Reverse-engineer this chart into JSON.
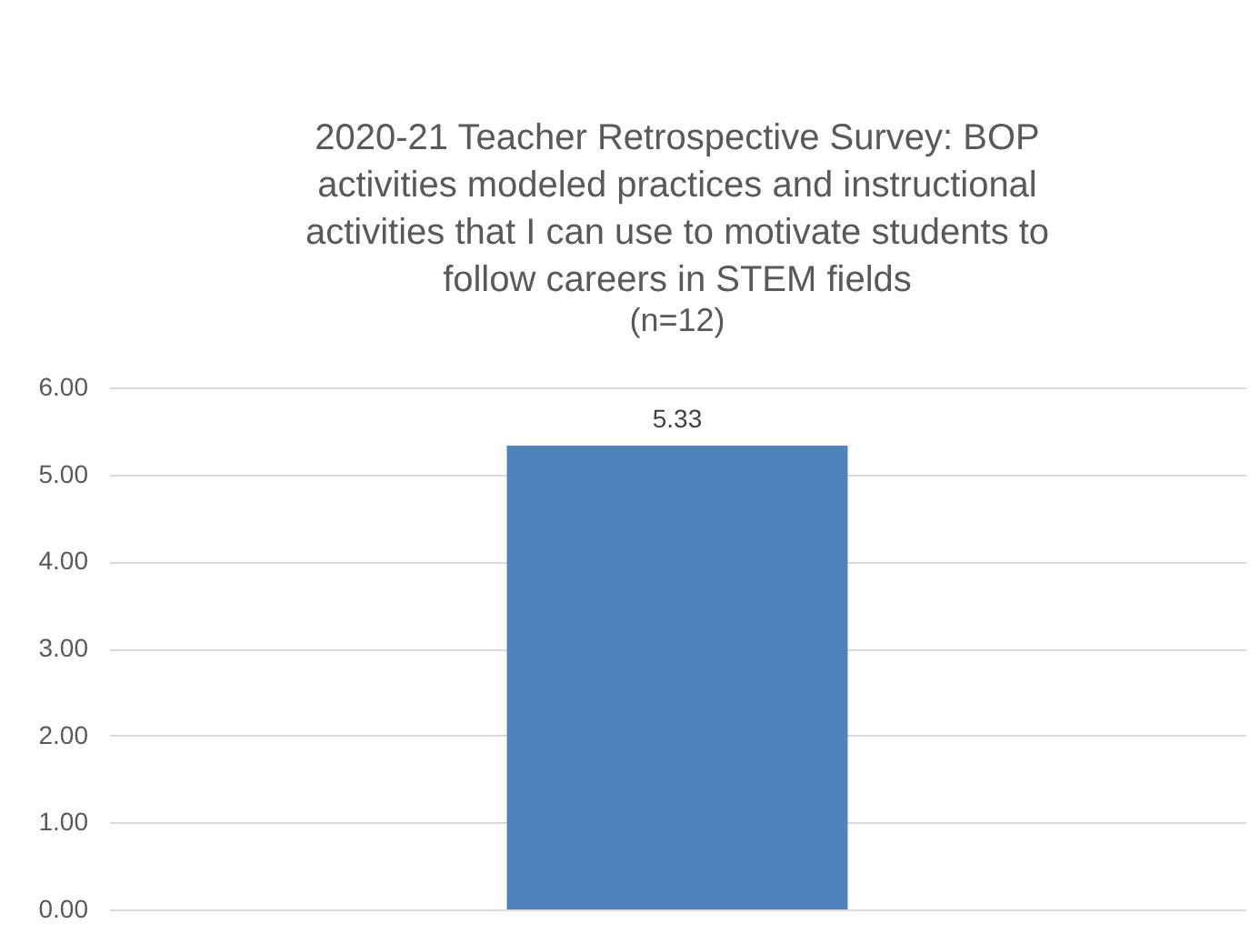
{
  "chart_data": {
    "type": "bar",
    "title": "2020-21 Teacher Retrospective Survey:  BOP activities modeled practices and instructional activities that I can use to motivate students to follow careers in STEM fields",
    "subtitle": "(n=12)",
    "categories": [
      null
    ],
    "values": [
      5.33
    ],
    "color": "#4f81bd",
    "ylim": [
      0,
      6
    ],
    "yticks": [
      {
        "value": 0,
        "label": "0.00"
      },
      {
        "value": 1,
        "label": "1.00"
      },
      {
        "value": 2,
        "label": "2.00"
      },
      {
        "value": 3,
        "label": "3.00"
      },
      {
        "value": 4,
        "label": "4.00"
      },
      {
        "value": 5,
        "label": "5.00"
      },
      {
        "value": 6,
        "label": "6.00"
      }
    ],
    "grid": "y",
    "data_labels": true
  }
}
